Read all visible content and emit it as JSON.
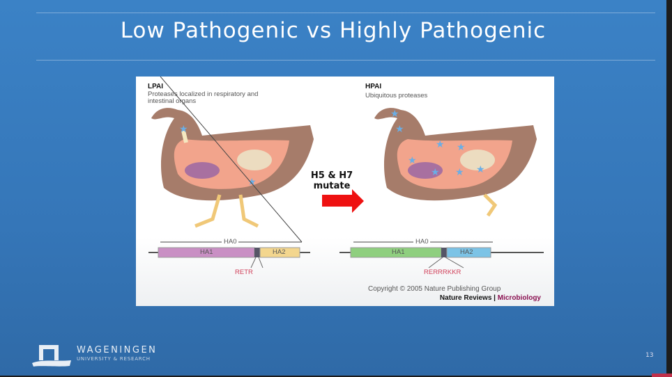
{
  "slide": {
    "title": "Low Pathogenic vs Highly Pathogenic",
    "page_number": "13"
  },
  "figure": {
    "left": {
      "heading": "LPAI",
      "desc_line1": "Proteases localized in respiratory and",
      "desc_line2": "intestinal organs",
      "ha0": "HA0",
      "ha1": "HA1",
      "ha2": "HA2",
      "site": "RETR",
      "ha1_color": "#c98fc4",
      "ha2_color": "#f3d68e"
    },
    "right": {
      "heading": "HPAI",
      "desc": "Ubiquitous proteases",
      "ha0": "HA0",
      "ha1": "HA1",
      "ha2": "HA2",
      "site": "RERRRKKR",
      "ha1_color": "#8fcf7f",
      "ha2_color": "#7cc3e6"
    },
    "arrow_label_line1": "H5 & H7",
    "arrow_label_line2": "mutate",
    "arrow_color": "#ee1111",
    "copyright": "Copyright © 2005 Nature Publishing Group",
    "journal": "Nature Reviews",
    "journal_sep": " | ",
    "journal_section": "Microbiology"
  },
  "footer": {
    "brand": "WAGENINGEN",
    "brand_sub": "UNIVERSITY & RESEARCH"
  }
}
